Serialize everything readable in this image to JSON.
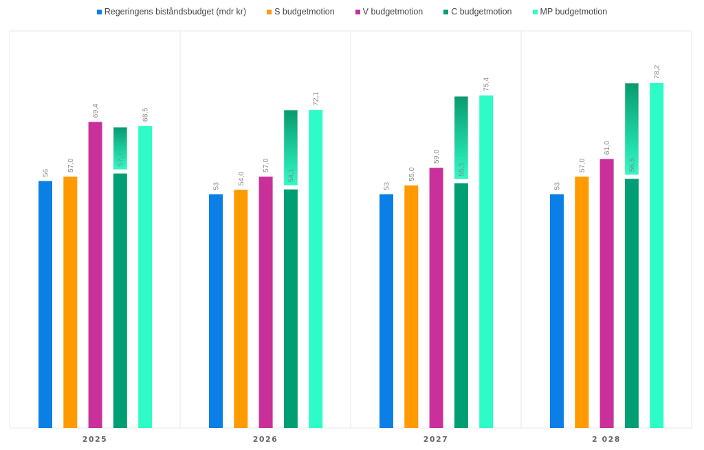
{
  "chart_data": {
    "type": "bar",
    "title": "",
    "xlabel": "",
    "ylabel": "",
    "ylim": [
      0,
      90
    ],
    "grid": false,
    "legend_position": "top-center",
    "categories": [
      "2025",
      "2026",
      "2027",
      "2 028"
    ],
    "series": [
      {
        "name": "Regeringens biståndsbudget (mdr kr)",
        "color": "#0a7fe6",
        "values": [
          56,
          53,
          53,
          53
        ],
        "labels": [
          "56",
          "53",
          "53",
          "53"
        ]
      },
      {
        "name": "S budgetmotion",
        "color": "#ff9a00",
        "values": [
          57.0,
          54.0,
          55.0,
          57.0
        ],
        "labels": [
          "57,0",
          "54,0",
          "55,0",
          "57,0"
        ]
      },
      {
        "name": "V budgetmotion",
        "color": "#c9309a",
        "values": [
          69.4,
          57.0,
          59.0,
          61.0
        ],
        "labels": [
          "69,4",
          "57,0",
          "59,0",
          "61,0"
        ]
      },
      {
        "name": "C budgetmotion",
        "color": "#009e73",
        "values": [
          57.7,
          54.1,
          55.5,
          56.5
        ],
        "labels": [
          "57,7",
          "54,1",
          "55,5",
          "56,5"
        ],
        "overlay_top": [
          68.2,
          72.1,
          75.2,
          78.2
        ]
      },
      {
        "name": "MP budgetmotion",
        "color": "#2dfcc6",
        "values": [
          68.5,
          72.1,
          75.4,
          78.2
        ],
        "labels": [
          "68,5",
          "72,1",
          "75,4",
          "78,2"
        ]
      }
    ]
  }
}
